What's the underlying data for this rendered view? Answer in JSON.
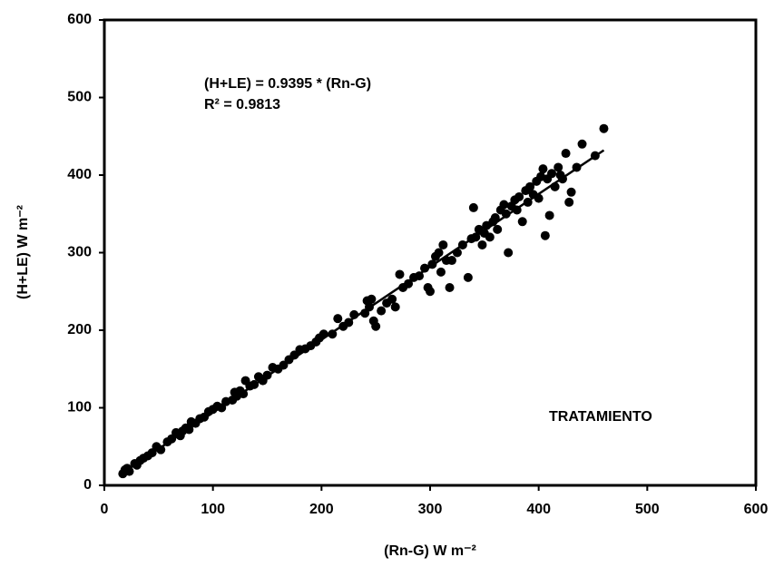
{
  "chart_data": {
    "type": "scatter",
    "x_label": "(Rn-G) W m⁻²",
    "y_label": "(H+LE) W  m⁻²",
    "annotations": [
      "(H+LE) = 0.9395 * (Rn-G)",
      "R² = 0.9813",
      "TRATAMIENTO"
    ],
    "xlim": [
      0,
      600
    ],
    "ylim": [
      0,
      600
    ],
    "xticks": [
      0,
      100,
      200,
      300,
      400,
      500,
      600
    ],
    "yticks": [
      0,
      100,
      200,
      300,
      400,
      500,
      600
    ],
    "grid": false,
    "trendline": {
      "color": "#000000",
      "x": [
        17,
        460
      ],
      "y": [
        16,
        432
      ]
    },
    "series": [
      {
        "color": "#000000",
        "x": [
          17,
          19,
          21,
          23,
          28,
          30,
          33,
          36,
          40,
          44,
          48,
          52,
          58,
          62,
          66,
          70,
          72,
          75,
          78,
          80,
          84,
          88,
          92,
          96,
          100,
          104,
          108,
          112,
          118,
          120,
          122,
          125,
          128,
          130,
          134,
          138,
          142,
          146,
          150,
          155,
          160,
          165,
          170,
          175,
          180,
          185,
          190,
          195,
          198,
          202,
          210,
          215,
          220,
          225,
          230,
          240,
          242,
          244,
          246,
          248,
          250,
          255,
          260,
          265,
          268,
          272,
          275,
          280,
          285,
          290,
          295,
          298,
          300,
          302,
          305,
          308,
          310,
          312,
          315,
          318,
          320,
          325,
          330,
          335,
          338,
          340,
          342,
          345,
          348,
          350,
          352,
          355,
          358,
          360,
          362,
          365,
          368,
          370,
          372,
          375,
          378,
          380,
          382,
          385,
          388,
          390,
          392,
          395,
          398,
          400,
          402,
          404,
          406,
          408,
          410,
          412,
          415,
          418,
          420,
          422,
          425,
          428,
          430,
          435,
          440,
          452,
          460
        ],
        "values": [
          15,
          20,
          22,
          18,
          28,
          26,
          32,
          35,
          38,
          42,
          50,
          46,
          56,
          60,
          68,
          64,
          70,
          74,
          72,
          82,
          80,
          86,
          88,
          95,
          98,
          102,
          100,
          108,
          110,
          120,
          115,
          122,
          118,
          135,
          128,
          130,
          140,
          135,
          142,
          152,
          150,
          155,
          162,
          168,
          175,
          176,
          180,
          185,
          190,
          195,
          195,
          215,
          205,
          210,
          220,
          222,
          238,
          230,
          240,
          212,
          205,
          225,
          235,
          240,
          230,
          272,
          255,
          260,
          268,
          270,
          280,
          255,
          250,
          285,
          295,
          300,
          275,
          310,
          290,
          255,
          290,
          300,
          310,
          268,
          318,
          358,
          320,
          330,
          310,
          325,
          335,
          320,
          340,
          345,
          330,
          355,
          362,
          350,
          300,
          360,
          368,
          355,
          372,
          340,
          380,
          365,
          385,
          375,
          392,
          370,
          398,
          408,
          322,
          395,
          348,
          402,
          385,
          410,
          400,
          395,
          428,
          365,
          378,
          410,
          440,
          425,
          460
        ]
      }
    ]
  }
}
